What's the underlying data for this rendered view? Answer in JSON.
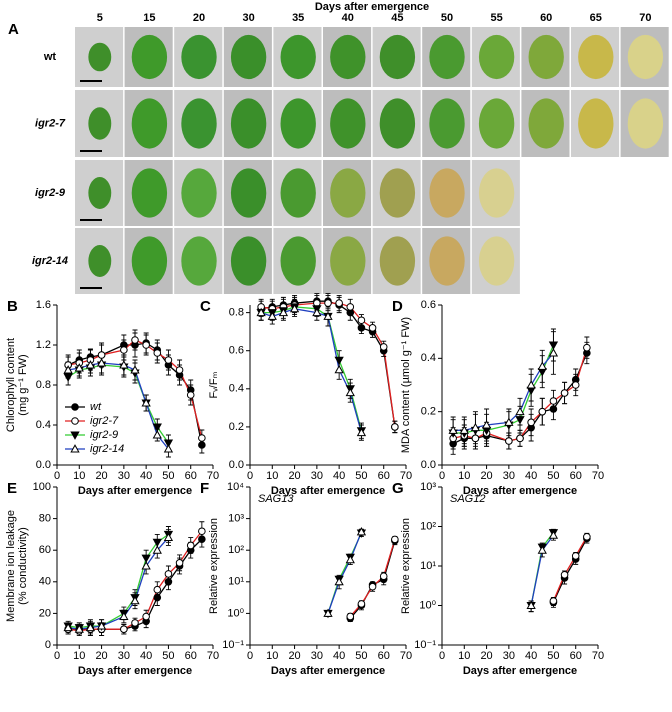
{
  "panel_a": {
    "letter": "A",
    "title": "Days after emergence",
    "days": [
      "5",
      "15",
      "20",
      "30",
      "35",
      "40",
      "45",
      "50",
      "55",
      "60",
      "65",
      "70"
    ],
    "rows": [
      "wt",
      "igr2-7",
      "igr2-9",
      "igr2-14"
    ]
  },
  "chart_data": [
    {
      "panel": "B",
      "type": "line",
      "xlabel": "Days after emergence",
      "ylabel": [
        "Chlorophyll content",
        "(mg g⁻¹ FW)"
      ],
      "xlim": [
        0,
        70
      ],
      "xticks": [
        0,
        10,
        20,
        30,
        40,
        50,
        60,
        70
      ],
      "ylim": [
        0,
        1.6
      ],
      "yticks": [
        {
          "value": 0,
          "label": "0.0"
        },
        {
          "value": 0.4,
          "label": "0.4"
        },
        {
          "value": 0.8,
          "label": "0.8"
        },
        {
          "value": 1.2,
          "label": "1.2"
        },
        {
          "value": 1.6,
          "label": "1.6"
        }
      ],
      "legend": "lower left",
      "series": [
        {
          "name": "wt",
          "color": "#000000",
          "marker": "circle-filled",
          "x": [
            5,
            10,
            15,
            20,
            30,
            35,
            40,
            45,
            50,
            55,
            60,
            65
          ],
          "values": [
            1.0,
            1.05,
            1.08,
            1.1,
            1.2,
            1.2,
            1.22,
            1.15,
            1.0,
            0.9,
            0.75,
            0.2
          ],
          "errors": [
            0.08,
            0.1,
            0.08,
            0.1,
            0.1,
            0.12,
            0.1,
            0.1,
            0.1,
            0.1,
            0.1,
            0.08
          ]
        },
        {
          "name": "igr2-7",
          "color": "#e02020",
          "marker": "circle-open",
          "x": [
            5,
            10,
            15,
            20,
            30,
            35,
            40,
            45,
            50,
            55,
            60,
            65
          ],
          "values": [
            1.0,
            1.02,
            1.05,
            1.1,
            1.15,
            1.25,
            1.2,
            1.12,
            1.05,
            0.95,
            0.7,
            0.27
          ],
          "errors": [
            0.1,
            0.1,
            0.1,
            0.12,
            0.1,
            0.1,
            0.1,
            0.1,
            0.1,
            0.1,
            0.1,
            0.08
          ]
        },
        {
          "name": "igr2-9",
          "color": "#33cc33",
          "marker": "triangle-down-filled",
          "x": [
            5,
            10,
            15,
            20,
            30,
            35,
            40,
            45,
            50
          ],
          "values": [
            0.88,
            0.95,
            0.97,
            1.0,
            0.98,
            0.92,
            0.62,
            0.38,
            0.22
          ],
          "errors": [
            0.08,
            0.08,
            0.08,
            0.1,
            0.1,
            0.1,
            0.08,
            0.08,
            0.08
          ]
        },
        {
          "name": "igr2-14",
          "color": "#1f3fbf",
          "marker": "triangle-up-open",
          "x": [
            5,
            10,
            15,
            20,
            30,
            35,
            40,
            45,
            50
          ],
          "values": [
            0.95,
            0.97,
            1.0,
            1.02,
            1.0,
            0.95,
            0.62,
            0.3,
            0.16
          ],
          "errors": [
            0.08,
            0.08,
            0.08,
            0.1,
            0.1,
            0.1,
            0.08,
            0.06,
            0.08
          ]
        }
      ]
    },
    {
      "panel": "C",
      "type": "line",
      "xlabel": "Days after emergence",
      "ylabel": [
        "Fᵥ/Fₘ"
      ],
      "xlim": [
        0,
        70
      ],
      "xticks": [
        0,
        10,
        20,
        30,
        40,
        50,
        60,
        70
      ],
      "ylim": [
        0,
        0.84
      ],
      "yticks": [
        {
          "value": 0,
          "label": "0.0"
        },
        {
          "value": 0.2,
          "label": "0.2"
        },
        {
          "value": 0.4,
          "label": "0.4"
        },
        {
          "value": 0.6,
          "label": "0.6"
        },
        {
          "value": 0.8,
          "label": "0.8"
        }
      ],
      "series": [
        {
          "color": "#000000",
          "marker": "circle-filled",
          "x": [
            5,
            10,
            15,
            20,
            30,
            35,
            40,
            45,
            50,
            55,
            60,
            65
          ],
          "values": [
            0.82,
            0.83,
            0.84,
            0.85,
            0.86,
            0.86,
            0.84,
            0.8,
            0.72,
            0.7,
            0.6,
            0.2
          ],
          "errors": [
            0.04,
            0.04,
            0.04,
            0.04,
            0.04,
            0.04,
            0.04,
            0.04,
            0.03,
            0.03,
            0.03,
            0.03
          ]
        },
        {
          "color": "#e02020",
          "marker": "circle-open",
          "x": [
            5,
            10,
            15,
            20,
            30,
            35,
            40,
            45,
            50,
            55,
            60,
            65
          ],
          "values": [
            0.83,
            0.82,
            0.83,
            0.84,
            0.85,
            0.85,
            0.85,
            0.83,
            0.76,
            0.72,
            0.62,
            0.2
          ],
          "errors": [
            0.04,
            0.04,
            0.04,
            0.04,
            0.04,
            0.04,
            0.04,
            0.04,
            0.03,
            0.03,
            0.03,
            0.03
          ]
        },
        {
          "color": "#33cc33",
          "marker": "triangle-down-filled",
          "x": [
            5,
            10,
            15,
            20,
            30,
            35,
            40,
            45,
            50
          ],
          "values": [
            0.8,
            0.8,
            0.81,
            0.83,
            0.82,
            0.78,
            0.55,
            0.4,
            0.18
          ],
          "errors": [
            0.04,
            0.04,
            0.04,
            0.04,
            0.04,
            0.05,
            0.05,
            0.05,
            0.04
          ]
        },
        {
          "color": "#1f3fbf",
          "marker": "triangle-up-open",
          "x": [
            5,
            10,
            15,
            20,
            30,
            35,
            40,
            45,
            50
          ],
          "values": [
            0.8,
            0.78,
            0.8,
            0.82,
            0.8,
            0.78,
            0.5,
            0.38,
            0.17
          ],
          "errors": [
            0.04,
            0.04,
            0.04,
            0.04,
            0.04,
            0.05,
            0.05,
            0.05,
            0.04
          ]
        }
      ]
    },
    {
      "panel": "D",
      "type": "line",
      "xlabel": "Days after emergence",
      "ylabel": [
        "MDA content (µmol g⁻¹ FW)"
      ],
      "xlim": [
        0,
        70
      ],
      "xticks": [
        0,
        10,
        20,
        30,
        40,
        50,
        60,
        70
      ],
      "ylim": [
        0,
        0.6
      ],
      "yticks": [
        {
          "value": 0,
          "label": "0.0"
        },
        {
          "value": 0.2,
          "label": "0.2"
        },
        {
          "value": 0.4,
          "label": "0.4"
        },
        {
          "value": 0.6,
          "label": "0.6"
        }
      ],
      "series": [
        {
          "color": "#000000",
          "marker": "circle-filled",
          "x": [
            5,
            10,
            15,
            20,
            30,
            35,
            40,
            45,
            50,
            55,
            60,
            65
          ],
          "values": [
            0.08,
            0.1,
            0.1,
            0.11,
            0.09,
            0.1,
            0.14,
            0.2,
            0.21,
            0.27,
            0.32,
            0.42
          ],
          "errors": [
            0.04,
            0.04,
            0.04,
            0.04,
            0.03,
            0.03,
            0.05,
            0.05,
            0.04,
            0.04,
            0.04,
            0.04
          ]
        },
        {
          "color": "#e02020",
          "marker": "circle-open",
          "x": [
            5,
            10,
            15,
            20,
            30,
            35,
            40,
            45,
            50,
            55,
            60,
            65
          ],
          "values": [
            0.1,
            0.11,
            0.1,
            0.12,
            0.09,
            0.1,
            0.16,
            0.2,
            0.24,
            0.27,
            0.3,
            0.44
          ],
          "errors": [
            0.04,
            0.04,
            0.04,
            0.04,
            0.03,
            0.03,
            0.05,
            0.05,
            0.04,
            0.04,
            0.04,
            0.04
          ]
        },
        {
          "color": "#33cc33",
          "marker": "triangle-down-filled",
          "x": [
            5,
            10,
            15,
            20,
            30,
            35,
            40,
            45,
            50
          ],
          "values": [
            0.12,
            0.12,
            0.13,
            0.13,
            0.15,
            0.17,
            0.28,
            0.35,
            0.45
          ],
          "errors": [
            0.05,
            0.05,
            0.06,
            0.06,
            0.05,
            0.05,
            0.06,
            0.06,
            0.06
          ]
        },
        {
          "color": "#1f3fbf",
          "marker": "triangle-up-open",
          "x": [
            5,
            10,
            15,
            20,
            30,
            35,
            40,
            45,
            50
          ],
          "values": [
            0.13,
            0.13,
            0.14,
            0.15,
            0.16,
            0.2,
            0.3,
            0.37,
            0.42
          ],
          "errors": [
            0.05,
            0.05,
            0.06,
            0.06,
            0.05,
            0.05,
            0.06,
            0.06,
            0.08
          ]
        }
      ]
    },
    {
      "panel": "E",
      "type": "line",
      "xlabel": "Days after emergence",
      "ylabel": [
        "Membrane ion leakage",
        "(% conductivity)"
      ],
      "xlim": [
        0,
        70
      ],
      "xticks": [
        0,
        10,
        20,
        30,
        40,
        50,
        60,
        70
      ],
      "ylim": [
        0,
        100
      ],
      "yticks": [
        0,
        20,
        40,
        60,
        80,
        100
      ],
      "series": [
        {
          "color": "#000000",
          "marker": "circle-filled",
          "x": [
            5,
            10,
            15,
            20,
            30,
            35,
            40,
            45,
            50,
            55,
            60,
            65
          ],
          "values": [
            10,
            10,
            10,
            10,
            10,
            12,
            15,
            30,
            40,
            50,
            60,
            67
          ],
          "errors": [
            3,
            3,
            4,
            4,
            3,
            3,
            4,
            5,
            5,
            5,
            5,
            5
          ]
        },
        {
          "color": "#e02020",
          "marker": "circle-open",
          "x": [
            5,
            10,
            15,
            20,
            30,
            35,
            40,
            45,
            50,
            55,
            60,
            65
          ],
          "values": [
            10,
            9,
            10,
            10,
            10,
            14,
            18,
            35,
            45,
            52,
            63,
            72
          ],
          "errors": [
            3,
            3,
            4,
            4,
            3,
            3,
            4,
            5,
            5,
            5,
            5,
            6
          ]
        },
        {
          "color": "#33cc33",
          "marker": "triangle-down-filled",
          "x": [
            5,
            10,
            15,
            20,
            30,
            35,
            40,
            45,
            50
          ],
          "values": [
            12,
            11,
            12,
            12,
            20,
            30,
            55,
            65,
            70
          ],
          "errors": [
            3,
            3,
            4,
            4,
            4,
            5,
            5,
            5,
            5
          ]
        },
        {
          "color": "#1f3fbf",
          "marker": "triangle-up-open",
          "x": [
            5,
            10,
            15,
            20,
            30,
            35,
            40,
            45,
            50
          ],
          "values": [
            11,
            10,
            11,
            12,
            18,
            28,
            50,
            60,
            68
          ],
          "errors": [
            3,
            3,
            4,
            4,
            4,
            5,
            5,
            5,
            5
          ]
        }
      ]
    },
    {
      "panel": "F",
      "type": "line",
      "xlabel": "Days after emergence",
      "ylabel": [
        "Relative expression"
      ],
      "annotation": "SAG13",
      "log_y": true,
      "xlim": [
        0,
        70
      ],
      "xticks": [
        0,
        10,
        20,
        30,
        40,
        50,
        60,
        70
      ],
      "ylim": [
        0.1,
        10000
      ],
      "yticks": [
        {
          "value": 0.1,
          "label": "10⁻¹"
        },
        {
          "value": 1,
          "label": "10⁰"
        },
        {
          "value": 10,
          "label": "10¹"
        },
        {
          "value": 100,
          "label": "10²"
        },
        {
          "value": 1000,
          "label": "10³"
        },
        {
          "value": 10000,
          "label": "10⁴"
        }
      ],
      "series": [
        {
          "color": "#000000",
          "marker": "circle-filled",
          "x": [
            45,
            50,
            55,
            60,
            65
          ],
          "values": [
            0.7,
            1.8,
            8,
            12,
            200
          ],
          "errors": [
            0.15,
            0.5,
            2,
            4,
            50
          ]
        },
        {
          "color": "#e02020",
          "marker": "circle-open",
          "x": [
            45,
            50,
            55,
            60,
            65
          ],
          "values": [
            0.8,
            2,
            7,
            15,
            220
          ],
          "errors": [
            0.2,
            0.5,
            2,
            5,
            50
          ]
        },
        {
          "color": "#33cc33",
          "marker": "triangle-down-filled",
          "x": [
            35,
            40,
            45,
            50
          ],
          "values": [
            1.0,
            12,
            60,
            350
          ],
          "errors": [
            0.2,
            4,
            15,
            80
          ]
        },
        {
          "color": "#1f3fbf",
          "marker": "triangle-up-open",
          "x": [
            35,
            40,
            45,
            50
          ],
          "values": [
            1.0,
            10,
            50,
            380
          ],
          "errors": [
            0.2,
            4,
            15,
            80
          ]
        }
      ]
    },
    {
      "panel": "G",
      "type": "line",
      "xlabel": "Days after emergence",
      "ylabel": [
        "Relative expression"
      ],
      "annotation": "SAG12",
      "log_y": true,
      "xlim": [
        0,
        70
      ],
      "xticks": [
        0,
        10,
        20,
        30,
        40,
        50,
        60,
        70
      ],
      "ylim": [
        0.1,
        1000
      ],
      "yticks": [
        {
          "value": 0.1,
          "label": "10⁻¹"
        },
        {
          "value": 1,
          "label": "10⁰"
        },
        {
          "value": 10,
          "label": "10¹"
        },
        {
          "value": 100,
          "label": "10²"
        },
        {
          "value": 1000,
          "label": "10³"
        }
      ],
      "series": [
        {
          "color": "#000000",
          "marker": "circle-filled",
          "x": [
            50,
            55,
            60,
            65
          ],
          "values": [
            1.2,
            5,
            15,
            50
          ],
          "errors": [
            0.3,
            1.5,
            4,
            12
          ]
        },
        {
          "color": "#e02020",
          "marker": "circle-open",
          "x": [
            50,
            55,
            60,
            65
          ],
          "values": [
            1.3,
            6,
            18,
            55
          ],
          "errors": [
            0.3,
            1.5,
            4,
            12
          ]
        },
        {
          "color": "#33cc33",
          "marker": "triangle-down-filled",
          "x": [
            40,
            45,
            50
          ],
          "values": [
            1.0,
            30,
            70
          ],
          "errors": [
            0.3,
            8,
            15
          ]
        },
        {
          "color": "#1f3fbf",
          "marker": "triangle-up-open",
          "x": [
            40,
            45,
            50
          ],
          "values": [
            1.0,
            25,
            60
          ],
          "errors": [
            0.3,
            8,
            15
          ]
        }
      ]
    }
  ]
}
